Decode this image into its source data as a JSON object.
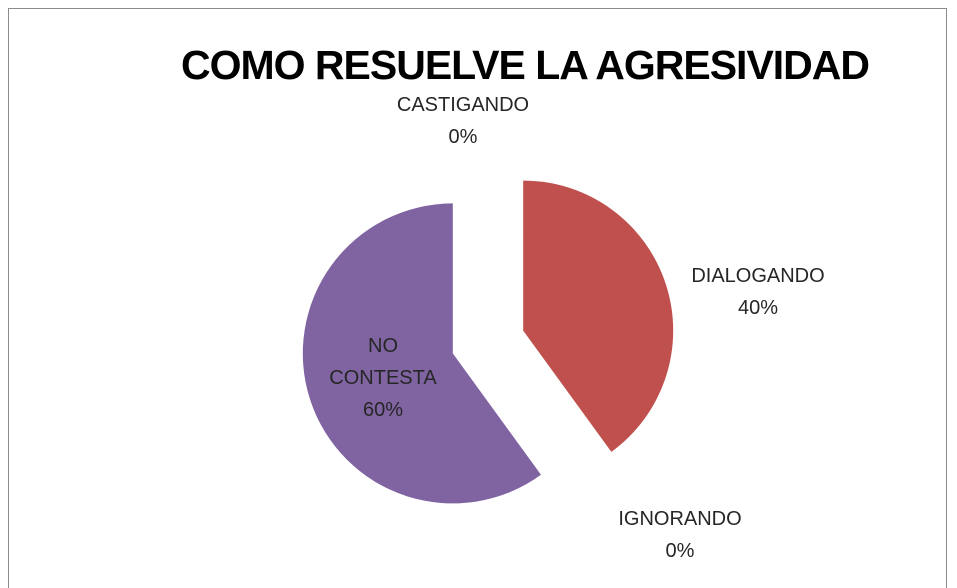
{
  "chart_data": {
    "type": "pie",
    "title": "COMO RESUELVE LA AGRESIVIDAD",
    "categories": [
      "CASTIGANDO",
      "DIALOGANDO",
      "IGNORANDO",
      "NO CONTESTA"
    ],
    "values": [
      0,
      40,
      0,
      60
    ],
    "value_labels": [
      "0%",
      "40%",
      "0%",
      "60%"
    ],
    "colors": [
      "#4f81bd",
      "#c0504d",
      "#9bbb59",
      "#8064a2"
    ]
  }
}
